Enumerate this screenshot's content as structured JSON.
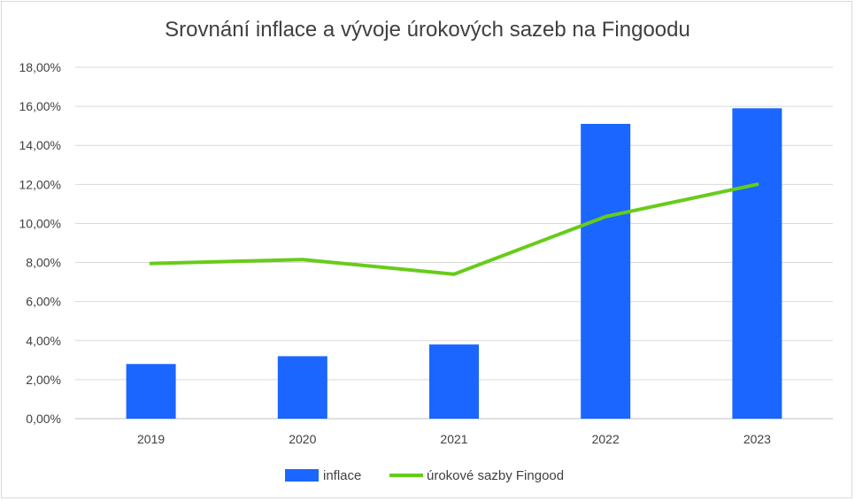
{
  "chart_data": {
    "type": "bar",
    "title": "Srovnání inflace a vývoje úrokových sazeb na Fingoodu",
    "categories": [
      "2019",
      "2020",
      "2021",
      "2022",
      "2023"
    ],
    "series": [
      {
        "name": "inflace",
        "type": "bar",
        "color": "#1a66ff",
        "values": [
          2.8,
          3.2,
          3.8,
          15.1,
          15.9
        ]
      },
      {
        "name": "úrokové sazby Fingood",
        "type": "line",
        "color": "#66cc1a",
        "values": [
          7.95,
          8.15,
          7.4,
          10.35,
          12.0
        ]
      }
    ],
    "y_ticks": [
      "0,00%",
      "2,00%",
      "4,00%",
      "6,00%",
      "8,00%",
      "10,00%",
      "12,00%",
      "14,00%",
      "16,00%",
      "18,00%"
    ],
    "ylim": [
      0,
      18
    ],
    "grid": true,
    "legend_position": "bottom",
    "xlabel": "",
    "ylabel": ""
  }
}
